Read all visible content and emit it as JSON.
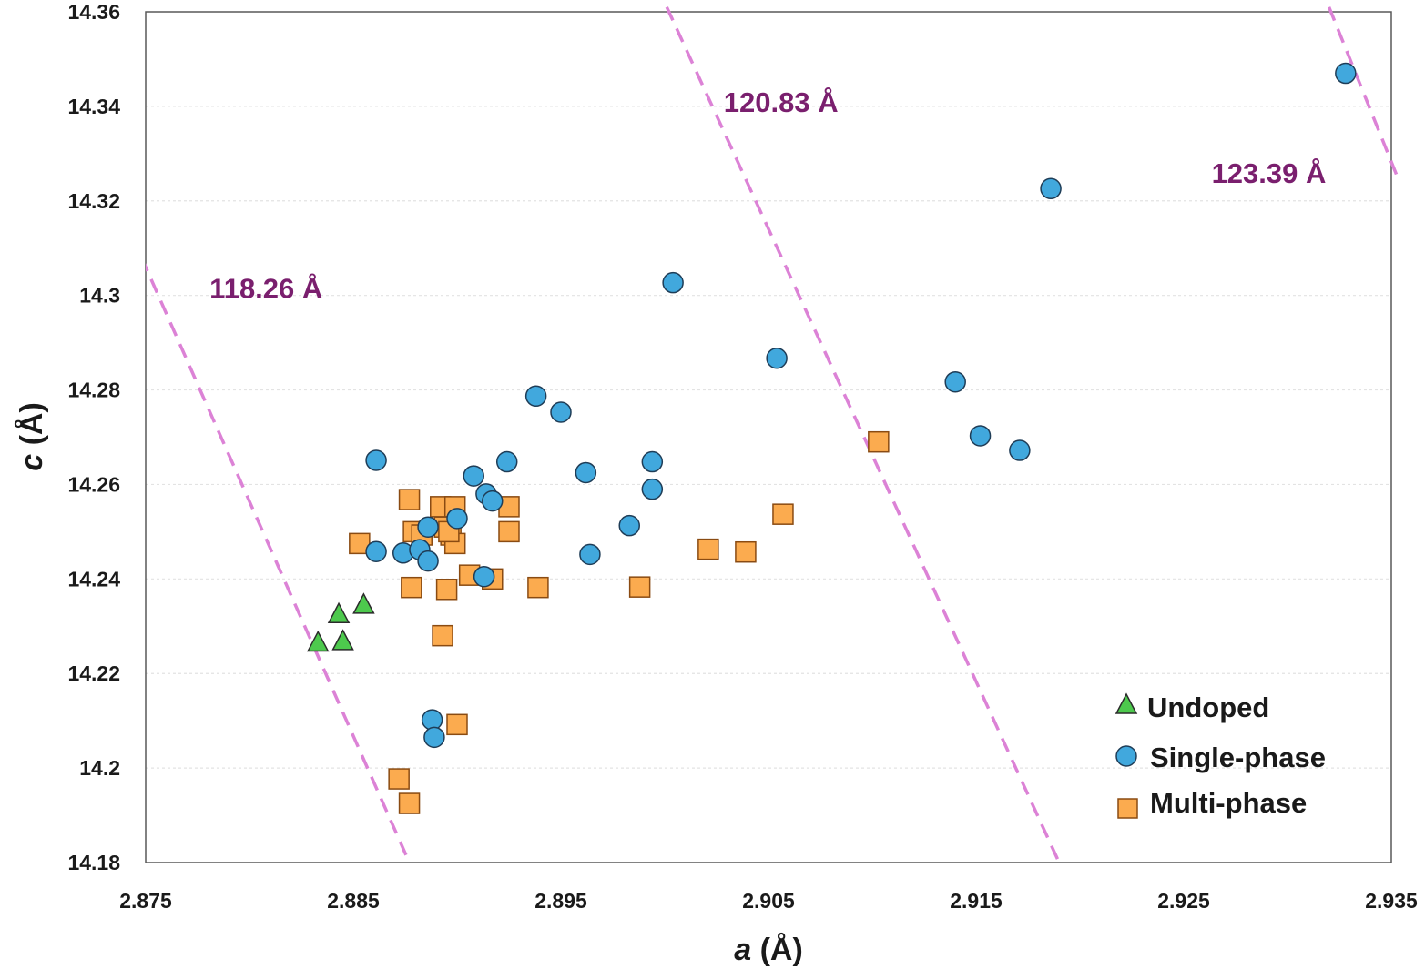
{
  "chart_data": {
    "type": "scatter",
    "title": "",
    "xlabel_italic": "a",
    "xlabel_unit": " (Å)",
    "ylabel_italic": "c",
    "ylabel_unit": " (Å)",
    "xlim": [
      2.875,
      2.935
    ],
    "ylim": [
      14.18,
      14.36
    ],
    "x_ticks": [
      2.875,
      2.885,
      2.895,
      2.905,
      2.915,
      2.925,
      2.935
    ],
    "x_tick_labels": [
      "2.875",
      "2.885",
      "2.895",
      "2.905",
      "2.915",
      "2.925",
      "2.935"
    ],
    "y_ticks": [
      14.18,
      14.2,
      14.22,
      14.24,
      14.26,
      14.28,
      14.3,
      14.32,
      14.34,
      14.36
    ],
    "y_tick_labels": [
      "14.18",
      "14.2",
      "14.22",
      "14.24",
      "14.26",
      "14.28",
      "14.3",
      "14.32",
      "14.34",
      "14.36"
    ],
    "grid": true,
    "legend_position": "bottom-right",
    "series": [
      {
        "name": "Undoped",
        "marker": "triangle",
        "color": "#4dc94d",
        "points": [
          [
            2.8833,
            14.2265
          ],
          [
            2.8843,
            14.2325
          ],
          [
            2.8845,
            14.2268
          ],
          [
            2.8855,
            14.2345
          ]
        ]
      },
      {
        "name": "Single-phase",
        "marker": "circle",
        "color": "#41a8dd",
        "points": [
          [
            2.8861,
            14.2651
          ],
          [
            2.8861,
            14.2458
          ],
          [
            2.8874,
            14.2455
          ],
          [
            2.8882,
            14.2462
          ],
          [
            2.8886,
            14.2438
          ],
          [
            2.8886,
            14.251
          ],
          [
            2.89,
            14.2528
          ],
          [
            2.8908,
            14.2618
          ],
          [
            2.8914,
            14.258
          ],
          [
            2.8917,
            14.2565
          ],
          [
            2.8913,
            14.2405
          ],
          [
            2.8924,
            14.2648
          ],
          [
            2.8938,
            14.2787
          ],
          [
            2.895,
            14.2753
          ],
          [
            2.8962,
            14.2625
          ],
          [
            2.8964,
            14.2452
          ],
          [
            2.8983,
            14.2513
          ],
          [
            2.8994,
            14.2648
          ],
          [
            2.8994,
            14.259
          ],
          [
            2.9004,
            14.3027
          ],
          [
            2.9054,
            14.2867
          ],
          [
            2.914,
            14.2817
          ],
          [
            2.9152,
            14.2703
          ],
          [
            2.9171,
            14.2672
          ],
          [
            2.9186,
            14.3226
          ],
          [
            2.9328,
            14.347
          ],
          [
            2.8888,
            14.2102
          ],
          [
            2.8889,
            14.2065
          ]
        ]
      },
      {
        "name": "Multi-phase",
        "marker": "square",
        "color": "#fbab4f",
        "points": [
          [
            2.8853,
            14.2475
          ],
          [
            2.8877,
            14.2568
          ],
          [
            2.8878,
            14.2382
          ],
          [
            2.8879,
            14.25
          ],
          [
            2.8883,
            14.2493
          ],
          [
            2.8892,
            14.2553
          ],
          [
            2.8899,
            14.2553
          ],
          [
            2.8894,
            14.251
          ],
          [
            2.8897,
            14.2493
          ],
          [
            2.8899,
            14.2475
          ],
          [
            2.8896,
            14.25
          ],
          [
            2.8895,
            14.2378
          ],
          [
            2.8893,
            14.228
          ],
          [
            2.8906,
            14.2408
          ],
          [
            2.8917,
            14.24
          ],
          [
            2.8925,
            14.2553
          ],
          [
            2.8925,
            14.25
          ],
          [
            2.8939,
            14.2382
          ],
          [
            2.89,
            14.2092
          ],
          [
            2.8872,
            14.1977
          ],
          [
            2.8877,
            14.1925
          ],
          [
            2.8988,
            14.2383
          ],
          [
            2.9021,
            14.2463
          ],
          [
            2.9039,
            14.2457
          ],
          [
            2.9057,
            14.2537
          ],
          [
            2.9103,
            14.269
          ]
        ]
      }
    ],
    "reference_lines": [
      {
        "label": "118.26 Å",
        "color": "#dc82d6",
        "from": [
          2.8748,
          14.308
        ],
        "to": [
          2.8877,
          14.18
        ]
      },
      {
        "label": "120.83 Å",
        "color": "#dc82d6",
        "from": [
          2.9001,
          14.361
        ],
        "to": [
          2.919,
          14.18
        ]
      },
      {
        "label": "123.39 Å",
        "color": "#dc82d6",
        "from": [
          2.932,
          14.361
        ],
        "to": [
          2.9353,
          14.325
        ]
      }
    ],
    "annotations": [
      {
        "text": "118.26 Å",
        "x": 2.8808,
        "y": 14.2995,
        "color": "#7a1f6e"
      },
      {
        "text": "120.83 Å",
        "x": 2.9056,
        "y": 14.3388,
        "color": "#7a1f6e"
      },
      {
        "text": "123.39 Å",
        "x": 2.9291,
        "y": 14.3238,
        "color": "#7a1f6e"
      }
    ]
  }
}
